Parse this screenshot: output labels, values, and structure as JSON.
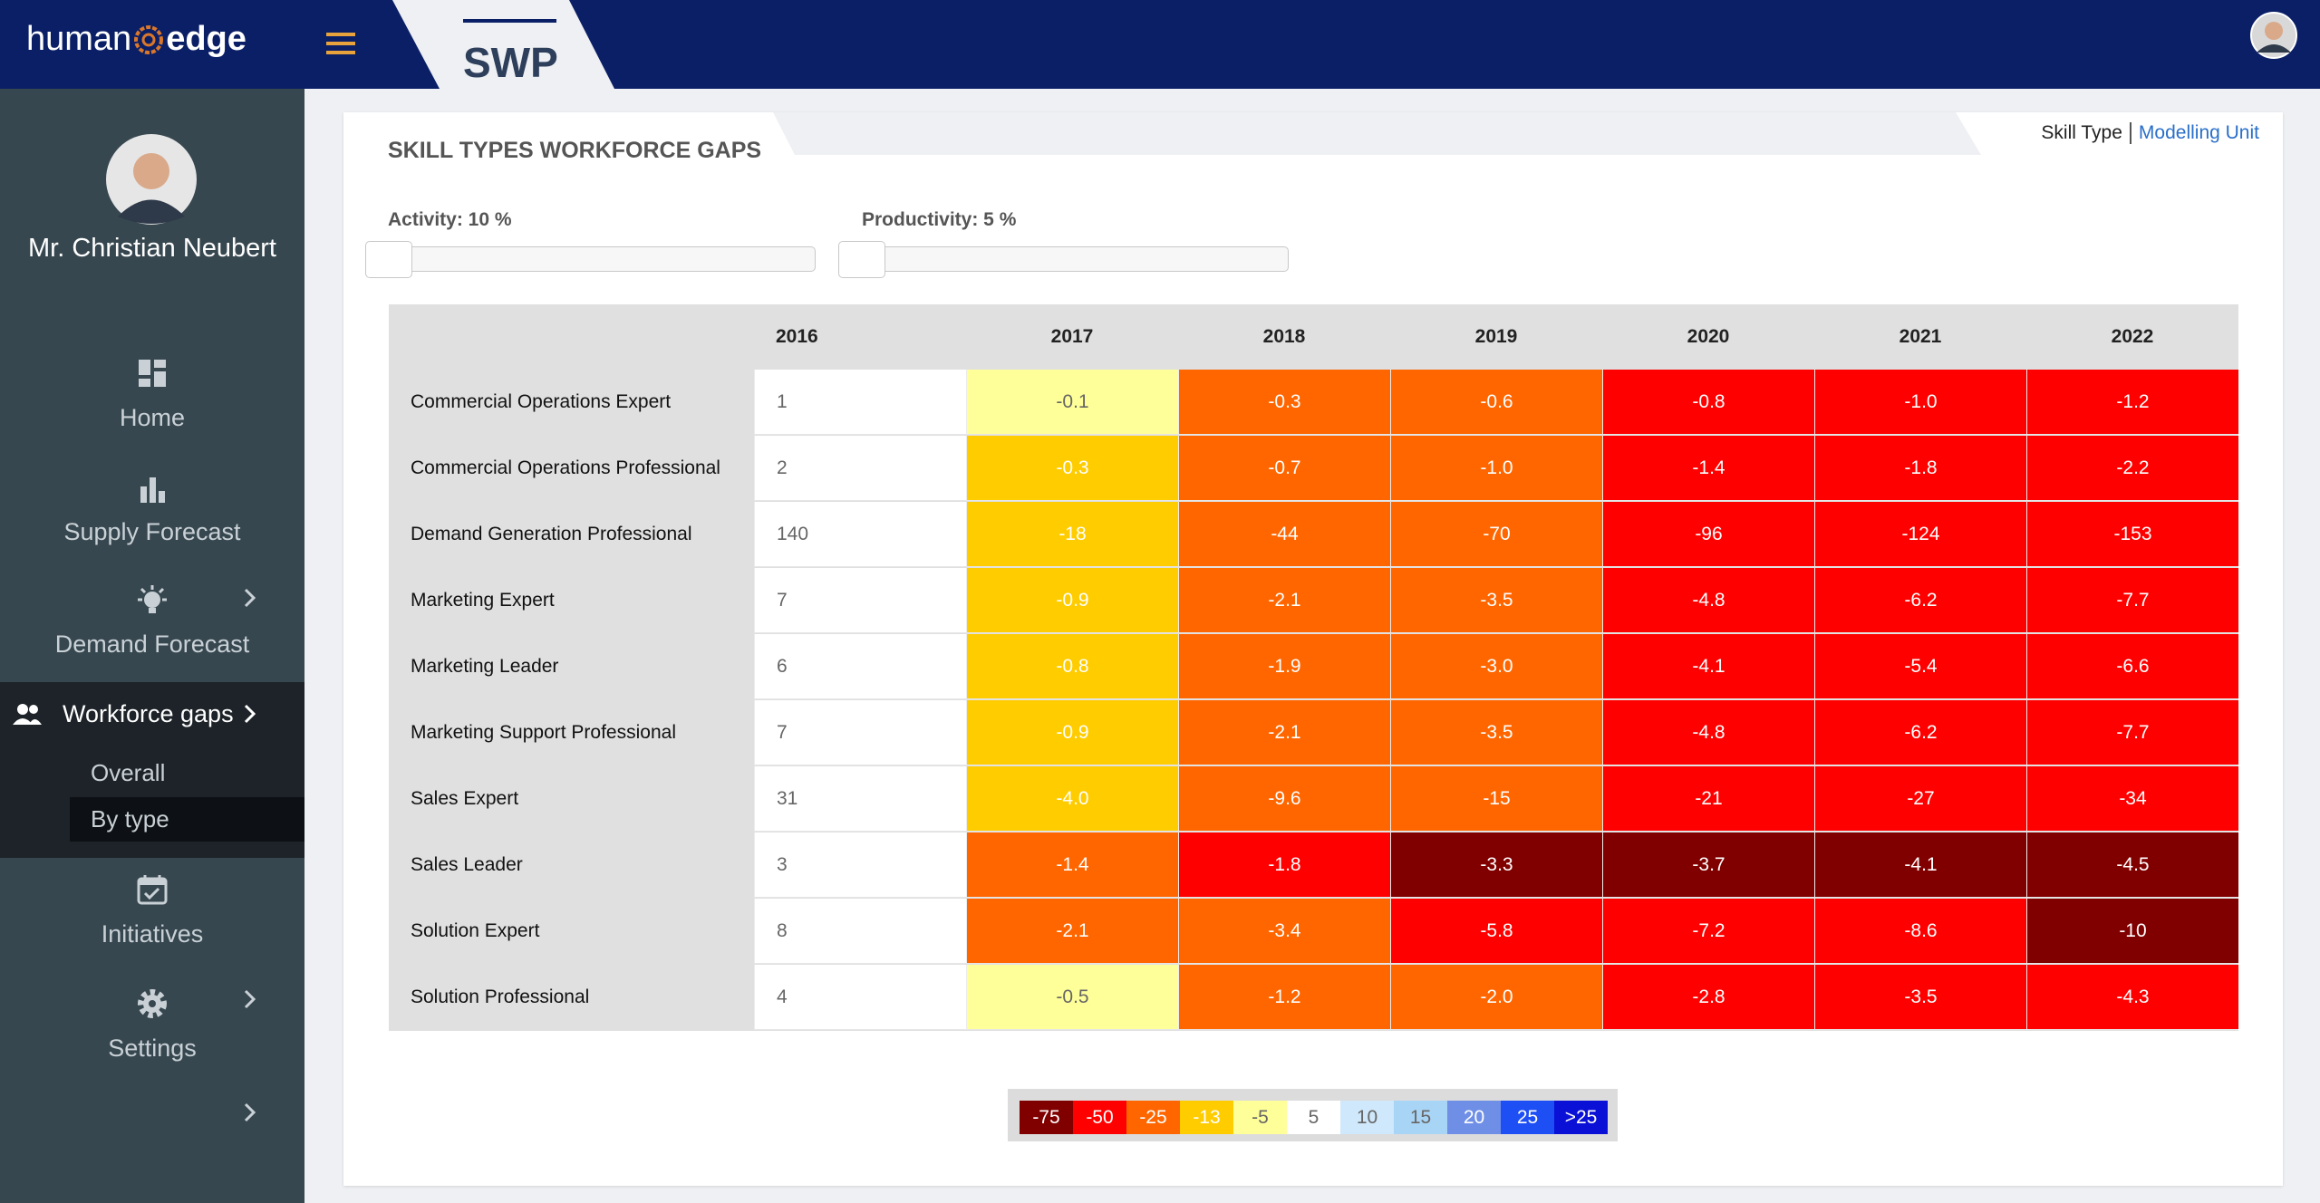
{
  "header": {
    "logo_left": "human",
    "logo_right": "edge",
    "app": "SWP"
  },
  "user": {
    "name": "Mr. Christian Neubert"
  },
  "nav": [
    {
      "label": "Home"
    },
    {
      "label": "Supply Forecast"
    },
    {
      "label": "Demand Forecast"
    },
    {
      "label": "Workforce gaps"
    },
    {
      "label": "Initiatives"
    },
    {
      "label": "Settings"
    }
  ],
  "nav_sub": [
    "Overall",
    "By type"
  ],
  "panel": {
    "title": "SKILL TYPES WORKFORCE GAPS",
    "tabs": [
      "Skill Type",
      "Modelling Unit"
    ],
    "sliders": [
      {
        "label": "Activity: 10 %"
      },
      {
        "label": "Productivity: 5 %"
      }
    ]
  },
  "table": {
    "columns": [
      "2016",
      "2017",
      "2018",
      "2019",
      "2020",
      "2021",
      "2022"
    ],
    "rows": [
      {
        "label": "Commercial Operations Expert",
        "cells": [
          "1",
          "-0.1",
          "-0.3",
          "-0.6",
          "-0.8",
          "-1.0",
          "-1.2"
        ],
        "colors": [
          "#ffffff",
          "#ffff99",
          "#ff6600",
          "#ff6600",
          "#ff0000",
          "#ff0000",
          "#ff0000"
        ]
      },
      {
        "label": "Commercial Operations Professional",
        "cells": [
          "2",
          "-0.3",
          "-0.7",
          "-1.0",
          "-1.4",
          "-1.8",
          "-2.2"
        ],
        "colors": [
          "#ffffff",
          "#ffcc00",
          "#ff6600",
          "#ff6600",
          "#ff0000",
          "#ff0000",
          "#ff0000"
        ]
      },
      {
        "label": "Demand Generation Professional",
        "cells": [
          "140",
          "-18",
          "-44",
          "-70",
          "-96",
          "-124",
          "-153"
        ],
        "colors": [
          "#ffffff",
          "#ffcc00",
          "#ff6600",
          "#ff6600",
          "#ff0000",
          "#ff0000",
          "#ff0000"
        ]
      },
      {
        "label": "Marketing Expert",
        "cells": [
          "7",
          "-0.9",
          "-2.1",
          "-3.5",
          "-4.8",
          "-6.2",
          "-7.7"
        ],
        "colors": [
          "#ffffff",
          "#ffcc00",
          "#ff6600",
          "#ff6600",
          "#ff0000",
          "#ff0000",
          "#ff0000"
        ]
      },
      {
        "label": "Marketing Leader",
        "cells": [
          "6",
          "-0.8",
          "-1.9",
          "-3.0",
          "-4.1",
          "-5.4",
          "-6.6"
        ],
        "colors": [
          "#ffffff",
          "#ffcc00",
          "#ff6600",
          "#ff6600",
          "#ff0000",
          "#ff0000",
          "#ff0000"
        ]
      },
      {
        "label": "Marketing Support Professional",
        "cells": [
          "7",
          "-0.9",
          "-2.1",
          "-3.5",
          "-4.8",
          "-6.2",
          "-7.7"
        ],
        "colors": [
          "#ffffff",
          "#ffcc00",
          "#ff6600",
          "#ff6600",
          "#ff0000",
          "#ff0000",
          "#ff0000"
        ]
      },
      {
        "label": "Sales Expert",
        "cells": [
          "31",
          "-4.0",
          "-9.6",
          "-15",
          "-21",
          "-27",
          "-34"
        ],
        "colors": [
          "#ffffff",
          "#ffcc00",
          "#ff6600",
          "#ff6600",
          "#ff0000",
          "#ff0000",
          "#ff0000"
        ]
      },
      {
        "label": "Sales Leader",
        "cells": [
          "3",
          "-1.4",
          "-1.8",
          "-3.3",
          "-3.7",
          "-4.1",
          "-4.5"
        ],
        "colors": [
          "#ffffff",
          "#ff6600",
          "#ff0000",
          "#800000",
          "#800000",
          "#800000",
          "#800000"
        ]
      },
      {
        "label": "Solution Expert",
        "cells": [
          "8",
          "-2.1",
          "-3.4",
          "-5.8",
          "-7.2",
          "-8.6",
          "-10"
        ],
        "colors": [
          "#ffffff",
          "#ff6600",
          "#ff6600",
          "#ff0000",
          "#ff0000",
          "#ff0000",
          "#800000"
        ]
      },
      {
        "label": "Solution Professional",
        "cells": [
          "4",
          "-0.5",
          "-1.2",
          "-2.0",
          "-2.8",
          "-3.5",
          "-4.3"
        ],
        "colors": [
          "#ffffff",
          "#ffff99",
          "#ff6600",
          "#ff6600",
          "#ff0000",
          "#ff0000",
          "#ff0000"
        ]
      }
    ]
  },
  "legend": [
    {
      "label": "-75",
      "color": "#800000"
    },
    {
      "label": "-50",
      "color": "#ff0000"
    },
    {
      "label": "-25",
      "color": "#ff6600"
    },
    {
      "label": "-13",
      "color": "#ffcc00"
    },
    {
      "label": "-5",
      "color": "#ffff99"
    },
    {
      "label": "5",
      "color": "#ffffff"
    },
    {
      "label": "10",
      "color": "#cfe8fb"
    },
    {
      "label": "15",
      "color": "#a8d4f5"
    },
    {
      "label": "20",
      "color": "#6f8fe6"
    },
    {
      "label": "25",
      "color": "#1d4ff5"
    },
    {
      "label": ">25",
      "color": "#0a10d6"
    }
  ]
}
